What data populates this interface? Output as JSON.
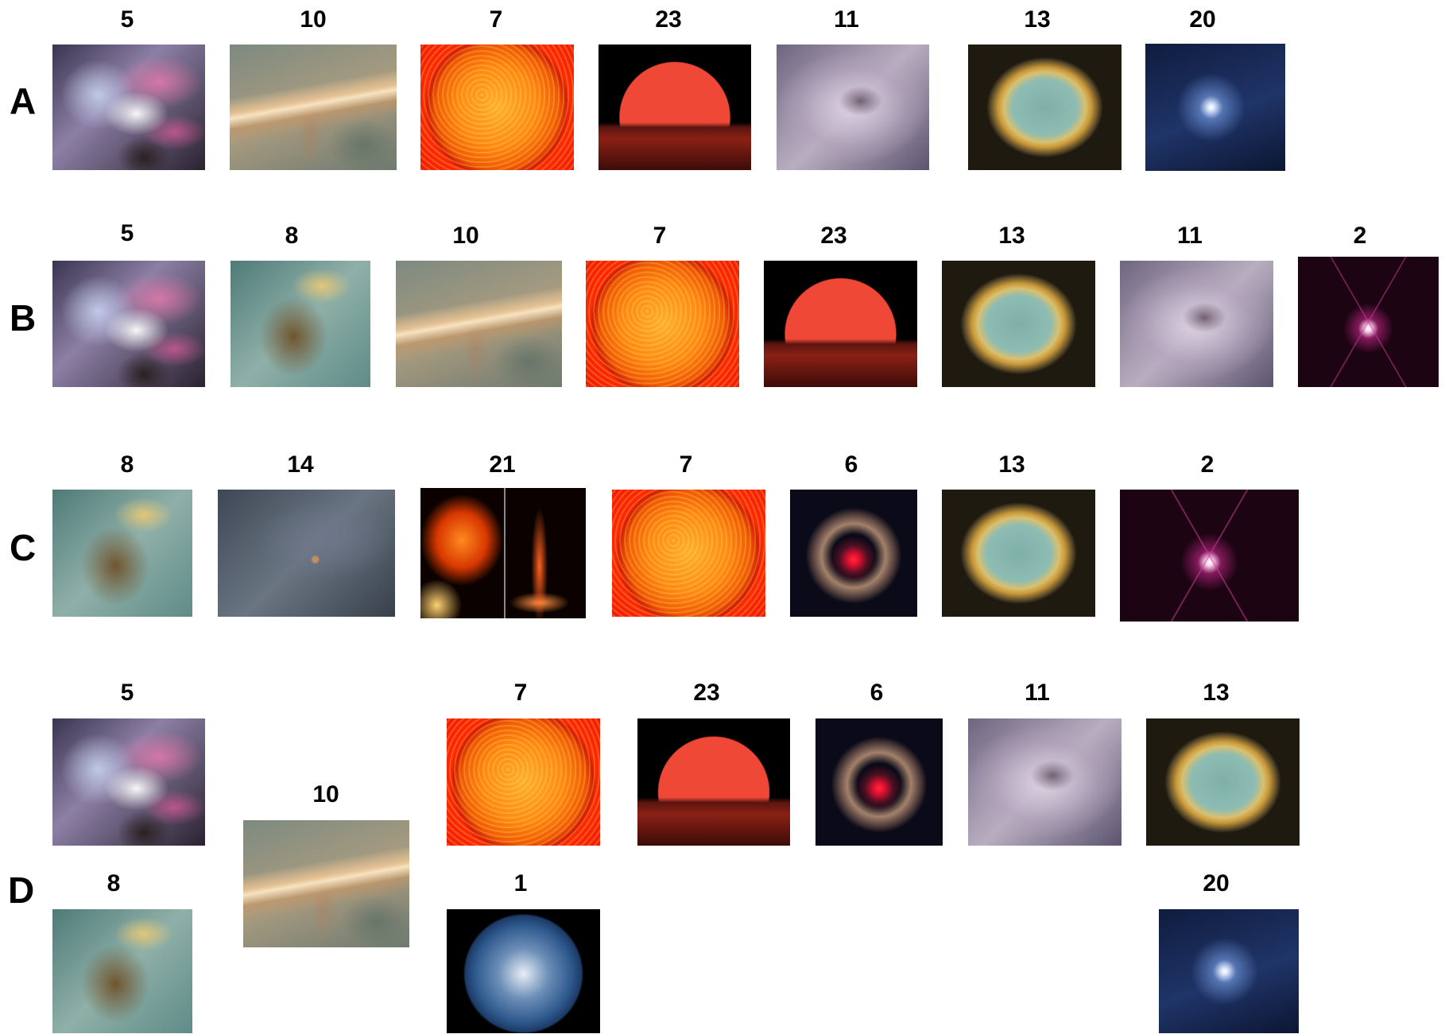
{
  "rows": [
    {
      "label": "A",
      "items": [
        {
          "num": "5",
          "image": "orion-nebula-image"
        },
        {
          "num": "10",
          "image": "protoplanetary-disk-image"
        },
        {
          "num": "7",
          "image": "sun-image"
        },
        {
          "num": "23",
          "image": "red-giant-horizon-image"
        },
        {
          "num": "11",
          "image": "white-nebula-image"
        },
        {
          "num": "13",
          "image": "ring-nebula-image"
        },
        {
          "num": "20",
          "image": "white-dwarf-image"
        }
      ]
    },
    {
      "label": "B",
      "items": [
        {
          "num": "5",
          "image": "orion-nebula-image"
        },
        {
          "num": "8",
          "image": "pillar-nebula-image"
        },
        {
          "num": "10",
          "image": "protoplanetary-disk-image"
        },
        {
          "num": "7",
          "image": "sun-image"
        },
        {
          "num": "23",
          "image": "red-giant-horizon-image"
        },
        {
          "num": "13",
          "image": "ring-nebula-image"
        },
        {
          "num": "11",
          "image": "white-nebula-image"
        },
        {
          "num": "2",
          "image": "binary-star-image"
        }
      ]
    },
    {
      "label": "C",
      "items": [
        {
          "num": "8",
          "image": "pillar-nebula-image"
        },
        {
          "num": "14",
          "image": "protostar-haze-image"
        },
        {
          "num": "21",
          "image": "solar-flare-jet-image"
        },
        {
          "num": "7",
          "image": "sun-image"
        },
        {
          "num": "6",
          "image": "light-echo-image"
        },
        {
          "num": "13",
          "image": "ring-nebula-image"
        },
        {
          "num": "2",
          "image": "binary-star-image"
        }
      ]
    },
    {
      "label": "D",
      "items": [
        {
          "num": "5",
          "image": "orion-nebula-image"
        },
        {
          "num": "10",
          "image": "protoplanetary-disk-image"
        },
        {
          "num": "7",
          "image": "sun-image"
        },
        {
          "num": "23",
          "image": "red-giant-horizon-image"
        },
        {
          "num": "6",
          "image": "light-echo-image"
        },
        {
          "num": "11",
          "image": "white-nebula-image"
        },
        {
          "num": "13",
          "image": "ring-nebula-image"
        },
        {
          "num": "8",
          "image": "pillar-nebula-image"
        },
        {
          "num": "1",
          "image": "earth-image"
        },
        {
          "num": "20",
          "image": "white-dwarf-image"
        }
      ]
    }
  ]
}
